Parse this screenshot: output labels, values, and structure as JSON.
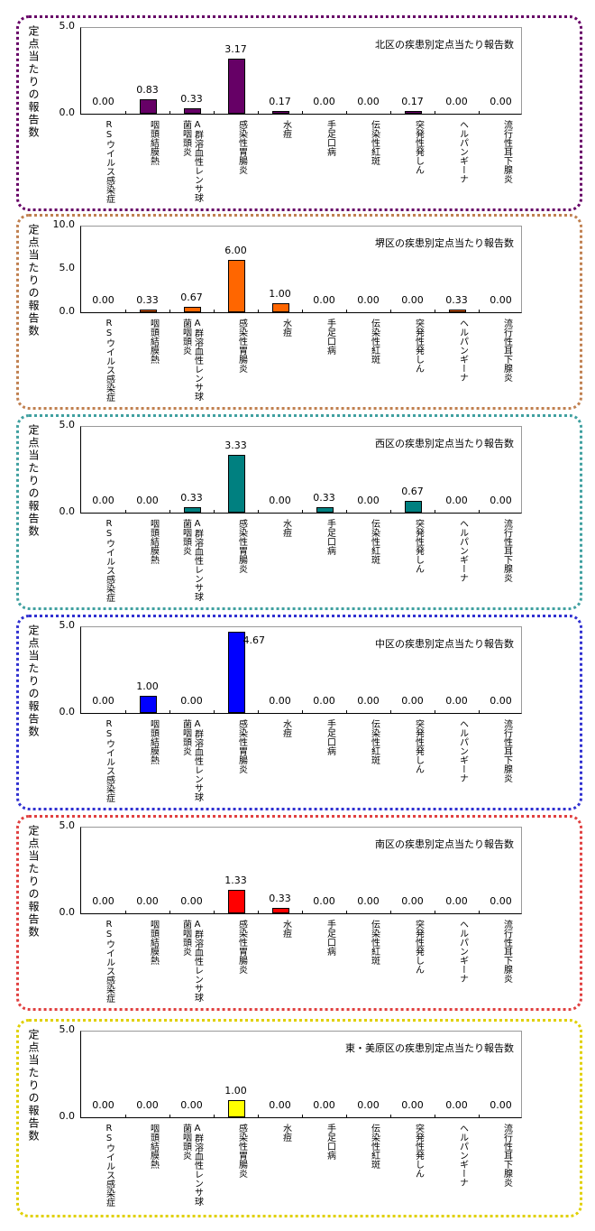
{
  "chart_data": [
    {
      "type": "bar",
      "title": "北区の疾患別定点当たり報告数",
      "ylabel": "定点当たりの報告数",
      "ylim": [
        0,
        5
      ],
      "yticks": [
        "0.0",
        "5.0"
      ],
      "color": "#660066",
      "border": "#660066",
      "categories": [
        "RSウイルス感染症",
        "咽頭結膜熱",
        "A群溶血性レンサ球菌咽頭炎",
        "感染性胃腸炎",
        "水痘",
        "手足口病",
        "伝染性紅斑",
        "突発性発しん",
        "ヘルパンギーナ",
        "流行性耳下腺炎"
      ],
      "values": [
        0.0,
        0.83,
        0.33,
        3.17,
        0.17,
        0.0,
        0.0,
        0.17,
        0.0,
        0.0
      ]
    },
    {
      "type": "bar",
      "title": "堺区の疾患別定点当たり報告数",
      "ylabel": "定点当たりの報告数",
      "ylim": [
        0,
        10
      ],
      "yticks": [
        "0.0",
        "5.0",
        "10.0"
      ],
      "color": "#FF6600",
      "border": "#C08050",
      "categories": [
        "RSウイルス感染症",
        "咽頭結膜熱",
        "A群溶血性レンサ球菌咽頭炎",
        "感染性胃腸炎",
        "水痘",
        "手足口病",
        "伝染性紅斑",
        "突発性発しん",
        "ヘルパンギーナ",
        "流行性耳下腺炎"
      ],
      "values": [
        0.0,
        0.33,
        0.67,
        6.0,
        1.0,
        0.0,
        0.0,
        0.0,
        0.33,
        0.0
      ]
    },
    {
      "type": "bar",
      "title": "西区の疾患別定点当たり報告数",
      "ylabel": "定点当たりの報告数",
      "ylim": [
        0,
        5
      ],
      "yticks": [
        "0.0",
        "5.0"
      ],
      "color": "#008080",
      "border": "#40A0A0",
      "categories": [
        "RSウイルス感染症",
        "咽頭結膜熱",
        "A群溶血性レンサ球菌咽頭炎",
        "感染性胃腸炎",
        "水痘",
        "手足口病",
        "伝染性紅斑",
        "突発性発しん",
        "ヘルパンギーナ",
        "流行性耳下腺炎"
      ],
      "values": [
        0.0,
        0.0,
        0.33,
        3.33,
        0.0,
        0.33,
        0.0,
        0.67,
        0.0,
        0.0
      ]
    },
    {
      "type": "bar",
      "title": "中区の疾患別定点当たり報告数",
      "ylabel": "定点当たりの報告数",
      "ylim": [
        0,
        5
      ],
      "yticks": [
        "0.0",
        "5.0"
      ],
      "color": "#0000FF",
      "border": "#3030D0",
      "categories": [
        "RSウイルス感染症",
        "咽頭結膜熱",
        "A群溶血性レンサ球菌咽頭炎",
        "感染性胃腸炎",
        "水痘",
        "手足口病",
        "伝染性紅斑",
        "突発性発しん",
        "ヘルパンギーナ",
        "流行性耳下腺炎"
      ],
      "values": [
        0.0,
        1.0,
        0.0,
        4.67,
        0.0,
        0.0,
        0.0,
        0.0,
        0.0,
        0.0
      ]
    },
    {
      "type": "bar",
      "title": "南区の疾患別定点当たり報告数",
      "ylabel": "定点当たりの報告数",
      "ylim": [
        0,
        5
      ],
      "yticks": [
        "0.0",
        "5.0"
      ],
      "color": "#FF0000",
      "border": "#E04040",
      "categories": [
        "RSウイルス感染症",
        "咽頭結膜熱",
        "A群溶血性レンサ球菌咽頭炎",
        "感染性胃腸炎",
        "水痘",
        "手足口病",
        "伝染性紅斑",
        "突発性発しん",
        "ヘルパンギーナ",
        "流行性耳下腺炎"
      ],
      "values": [
        0.0,
        0.0,
        0.0,
        1.33,
        0.33,
        0.0,
        0.0,
        0.0,
        0.0,
        0.0
      ]
    },
    {
      "type": "bar",
      "title": "東・美原区の疾患別定点当たり報告数",
      "ylabel": "定点当たりの報告数",
      "ylim": [
        0,
        5
      ],
      "yticks": [
        "0.0",
        "5.0"
      ],
      "color": "#FFFF00",
      "border": "#E0D000",
      "categories": [
        "RSウイルス感染症",
        "咽頭結膜熱",
        "A群溶血性レンサ球菌咽頭炎",
        "感染性胃腸炎",
        "水痘",
        "手足口病",
        "伝染性紅斑",
        "突発性発しん",
        "ヘルパンギーナ",
        "流行性耳下腺炎"
      ],
      "values": [
        0.0,
        0.0,
        0.0,
        1.0,
        0.0,
        0.0,
        0.0,
        0.0,
        0.0,
        0.0
      ]
    }
  ]
}
